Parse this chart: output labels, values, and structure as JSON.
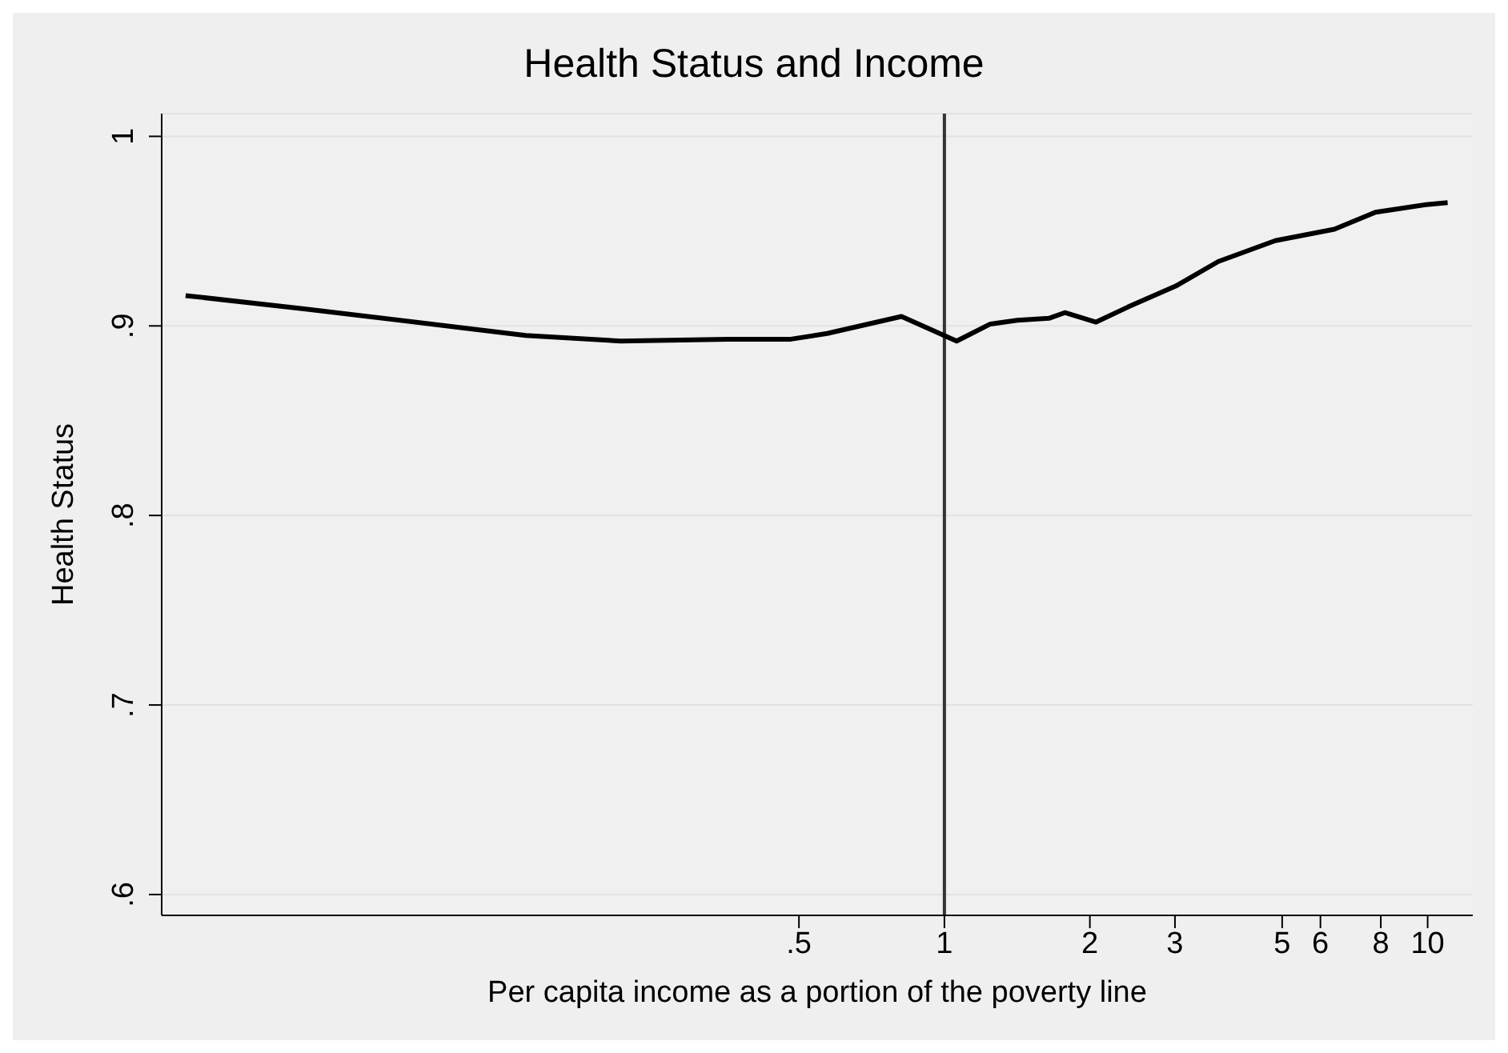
{
  "chart_data": {
    "type": "line",
    "title": "Health Status and Income",
    "xlabel": "Per capita income as a portion of the poverty line",
    "ylabel": "Health Status",
    "log": "x",
    "grid": "y",
    "legend": false,
    "marker": "none",
    "line_style": "solid",
    "x": [
      0.0269,
      0.0473,
      0.1007,
      0.136,
      0.214,
      0.356,
      0.481,
      0.572,
      0.815,
      1.06,
      1.245,
      1.415,
      1.645,
      1.775,
      2.06,
      2.4,
      3.01,
      3.69,
      4.84,
      6.41,
      7.8,
      9.93,
      11.0
    ],
    "series": [
      {
        "color": "#000000",
        "values": [
          0.916,
          0.909,
          0.899,
          0.895,
          0.892,
          0.893,
          0.893,
          0.896,
          0.905,
          0.892,
          0.901,
          0.903,
          0.904,
          0.907,
          0.902,
          0.91,
          0.921,
          0.934,
          0.945,
          0.951,
          0.96,
          0.964,
          0.965
        ]
      }
    ],
    "xlim": [
      0.024,
      12.4
    ],
    "xticks": [
      {
        "value": 0.5,
        "label": ".5"
      },
      1,
      2,
      3,
      5,
      6,
      8,
      10
    ],
    "ylim": [
      0.589,
      1.012
    ],
    "yticks": [
      {
        "value": 0.6,
        "label": ".6"
      },
      {
        "value": 0.7,
        "label": ".7"
      },
      {
        "value": 0.8,
        "label": ".8"
      },
      {
        "value": 0.9,
        "label": ".9"
      },
      1
    ],
    "ref_lines": [
      {
        "axis": "x",
        "value": 1,
        "color": "#333333"
      }
    ]
  }
}
